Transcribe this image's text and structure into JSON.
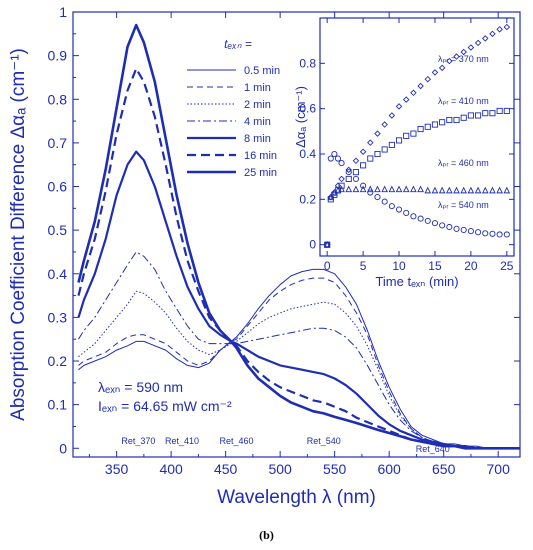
{
  "caption": "(b)",
  "chart_data": [
    {
      "type": "line",
      "xlabel": "Wavelength  λ  (nm)",
      "ylabel": "Absorption Coefficient Difference  Δαₐ  (cm⁻¹)",
      "xlim": [
        310,
        720
      ],
      "ylim": [
        -0.02,
        1.0
      ],
      "xticks": [
        350,
        400,
        450,
        500,
        550,
        600,
        650,
        700
      ],
      "yticks": [
        0,
        0.1,
        0.2,
        0.3,
        0.4,
        0.5,
        0.6,
        0.7,
        0.8,
        0.9,
        1
      ],
      "ytick_labels": [
        "0",
        "0.1",
        "0.2",
        "0.3",
        "0.4",
        "0.5",
        "0.6",
        "0.7",
        "0.8",
        "0.9",
        "1"
      ],
      "line_color": "#1f2db4",
      "legend_title": "tₑₓₙ =",
      "legend_placement": "top-center",
      "annotations": {
        "lambda_exc": "λₑₓₙ = 590 nm",
        "intensity": "Iₑₓₙ = 64.65 mW cm⁻²"
      },
      "markers": [
        {
          "label": "Ret_370",
          "x": 370
        },
        {
          "label": "Ret_410",
          "x": 410
        },
        {
          "label": "Ret_460",
          "x": 460
        },
        {
          "label": "Ret_540",
          "x": 540
        },
        {
          "label": "Ret_640",
          "x": 640
        }
      ],
      "x": [
        315,
        320,
        330,
        340,
        350,
        360,
        368,
        375,
        385,
        395,
        405,
        415,
        425,
        435,
        445,
        455,
        460,
        470,
        480,
        490,
        500,
        510,
        520,
        530,
        540,
        550,
        560,
        570,
        580,
        590,
        600,
        610,
        620,
        630,
        640,
        650,
        660,
        670,
        680,
        690,
        700,
        710,
        720
      ],
      "series": [
        {
          "name": "0.5 min",
          "style": "solid-thin",
          "values": [
            0.18,
            0.19,
            0.2,
            0.21,
            0.225,
            0.235,
            0.245,
            0.245,
            0.235,
            0.225,
            0.205,
            0.19,
            0.185,
            0.195,
            0.225,
            0.245,
            0.255,
            0.285,
            0.32,
            0.35,
            0.375,
            0.395,
            0.405,
            0.41,
            0.41,
            0.4,
            0.37,
            0.33,
            0.27,
            0.2,
            0.14,
            0.09,
            0.05,
            0.03,
            0.02,
            0.01,
            0.01,
            0.005,
            0.005,
            0.0,
            0.0,
            0.0,
            0.0
          ]
        },
        {
          "name": "1 min",
          "style": "dashed-thin",
          "values": [
            0.19,
            0.2,
            0.21,
            0.22,
            0.24,
            0.255,
            0.26,
            0.26,
            0.25,
            0.24,
            0.22,
            0.2,
            0.19,
            0.2,
            0.225,
            0.245,
            0.25,
            0.28,
            0.31,
            0.34,
            0.36,
            0.375,
            0.385,
            0.39,
            0.39,
            0.38,
            0.35,
            0.31,
            0.26,
            0.19,
            0.13,
            0.08,
            0.045,
            0.025,
            0.015,
            0.01,
            0.005,
            0.005,
            0.0,
            0.0,
            0.0,
            0.0,
            0.0
          ]
        },
        {
          "name": "2 min",
          "style": "dotted",
          "values": [
            0.21,
            0.22,
            0.24,
            0.27,
            0.3,
            0.33,
            0.36,
            0.355,
            0.335,
            0.31,
            0.275,
            0.245,
            0.225,
            0.215,
            0.225,
            0.24,
            0.245,
            0.265,
            0.285,
            0.3,
            0.31,
            0.32,
            0.325,
            0.33,
            0.335,
            0.33,
            0.31,
            0.28,
            0.235,
            0.18,
            0.12,
            0.075,
            0.045,
            0.025,
            0.015,
            0.01,
            0.005,
            0.005,
            0.0,
            0.0,
            0.0,
            0.0,
            0.0
          ]
        },
        {
          "name": "4 min",
          "style": "dashdot",
          "values": [
            0.25,
            0.27,
            0.3,
            0.34,
            0.38,
            0.42,
            0.45,
            0.44,
            0.41,
            0.36,
            0.32,
            0.28,
            0.25,
            0.24,
            0.24,
            0.24,
            0.24,
            0.245,
            0.25,
            0.255,
            0.26,
            0.265,
            0.27,
            0.275,
            0.275,
            0.27,
            0.255,
            0.23,
            0.19,
            0.145,
            0.1,
            0.065,
            0.04,
            0.025,
            0.015,
            0.01,
            0.005,
            0.005,
            0.0,
            0.0,
            0.0,
            0.0,
            0.0
          ]
        },
        {
          "name": "8 min",
          "style": "solid-thick",
          "values": [
            0.3,
            0.34,
            0.4,
            0.48,
            0.58,
            0.65,
            0.68,
            0.66,
            0.6,
            0.52,
            0.44,
            0.37,
            0.32,
            0.28,
            0.26,
            0.245,
            0.24,
            0.225,
            0.21,
            0.2,
            0.19,
            0.185,
            0.18,
            0.175,
            0.17,
            0.16,
            0.145,
            0.125,
            0.1,
            0.075,
            0.055,
            0.04,
            0.03,
            0.02,
            0.015,
            0.01,
            0.005,
            0.005,
            0.0,
            0.0,
            0.0,
            0.0,
            0.0
          ]
        },
        {
          "name": "16 min",
          "style": "dashed-thick",
          "values": [
            0.35,
            0.4,
            0.48,
            0.59,
            0.72,
            0.82,
            0.87,
            0.84,
            0.76,
            0.65,
            0.53,
            0.43,
            0.36,
            0.3,
            0.27,
            0.245,
            0.235,
            0.2,
            0.175,
            0.155,
            0.14,
            0.13,
            0.12,
            0.11,
            0.105,
            0.095,
            0.085,
            0.07,
            0.06,
            0.05,
            0.04,
            0.03,
            0.02,
            0.015,
            0.01,
            0.005,
            0.005,
            0.0,
            0.0,
            0.0,
            0.0,
            0.0,
            0.0
          ]
        },
        {
          "name": "25 min",
          "style": "solid-thicker",
          "values": [
            0.38,
            0.43,
            0.52,
            0.64,
            0.78,
            0.92,
            0.97,
            0.93,
            0.84,
            0.71,
            0.58,
            0.47,
            0.38,
            0.31,
            0.27,
            0.245,
            0.23,
            0.19,
            0.16,
            0.14,
            0.12,
            0.105,
            0.095,
            0.085,
            0.08,
            0.072,
            0.065,
            0.058,
            0.05,
            0.042,
            0.035,
            0.028,
            0.02,
            0.015,
            0.01,
            0.005,
            0.005,
            0.0,
            0.0,
            0.0,
            0.0,
            0.0,
            0.0
          ]
        }
      ]
    },
    {
      "type": "scatter",
      "xlabel": "Time  tₑₓₙ  (min)",
      "ylabel": "Δαₐ  (cm⁻¹)",
      "xlim": [
        -1,
        26
      ],
      "ylim": [
        -0.05,
        1.0
      ],
      "xticks": [
        0,
        5,
        10,
        15,
        20,
        25
      ],
      "yticks": [
        0,
        0.2,
        0.4,
        0.6,
        0.8
      ],
      "ytick_labels": [
        "0",
        "0.2",
        "0.4",
        "0.6",
        "0.8"
      ],
      "placement": "top-right inset",
      "series": [
        {
          "name": "λₚᵣ = 370 nm",
          "marker": "diamond",
          "x": [
            0,
            0.5,
            1,
            1.5,
            2,
            3,
            4,
            5,
            6,
            7,
            8,
            9,
            10,
            11,
            12,
            13,
            14,
            15,
            16,
            17,
            18,
            19,
            20,
            21,
            22,
            23,
            24,
            25
          ],
          "values": [
            0.0,
            0.21,
            0.23,
            0.26,
            0.29,
            0.33,
            0.37,
            0.41,
            0.45,
            0.49,
            0.53,
            0.57,
            0.61,
            0.64,
            0.67,
            0.7,
            0.73,
            0.76,
            0.78,
            0.81,
            0.83,
            0.85,
            0.87,
            0.89,
            0.91,
            0.93,
            0.95,
            0.96
          ]
        },
        {
          "name": "λₚᵣ = 410 nm",
          "marker": "square",
          "x": [
            0,
            0.5,
            1,
            1.5,
            2,
            3,
            4,
            5,
            6,
            7,
            8,
            9,
            10,
            11,
            12,
            13,
            14,
            15,
            16,
            17,
            18,
            19,
            20,
            21,
            22,
            23,
            24,
            25
          ],
          "values": [
            0.0,
            0.2,
            0.22,
            0.24,
            0.26,
            0.29,
            0.32,
            0.35,
            0.38,
            0.4,
            0.42,
            0.44,
            0.46,
            0.48,
            0.49,
            0.51,
            0.52,
            0.53,
            0.54,
            0.55,
            0.55,
            0.56,
            0.57,
            0.57,
            0.58,
            0.58,
            0.59,
            0.59
          ]
        },
        {
          "name": "λₚᵣ = 460 nm",
          "marker": "triangle",
          "x": [
            0,
            0.5,
            1,
            1.5,
            2,
            3,
            4,
            5,
            6,
            7,
            8,
            9,
            10,
            11,
            12,
            13,
            14,
            15,
            16,
            17,
            18,
            19,
            20,
            21,
            22,
            23,
            24,
            25
          ],
          "values": [
            0.0,
            0.21,
            0.23,
            0.24,
            0.245,
            0.245,
            0.245,
            0.245,
            0.245,
            0.245,
            0.245,
            0.245,
            0.245,
            0.245,
            0.245,
            0.245,
            0.24,
            0.24,
            0.24,
            0.24,
            0.24,
            0.24,
            0.24,
            0.24,
            0.24,
            0.24,
            0.24,
            0.24
          ]
        },
        {
          "name": "λₚᵣ = 540 nm",
          "marker": "circle",
          "x": [
            0,
            0.5,
            1,
            1.5,
            2,
            3,
            4,
            5,
            6,
            7,
            8,
            9,
            10,
            11,
            12,
            13,
            14,
            15,
            16,
            17,
            18,
            19,
            20,
            21,
            22,
            23,
            24,
            25
          ],
          "values": [
            0.0,
            0.38,
            0.4,
            0.38,
            0.36,
            0.32,
            0.29,
            0.26,
            0.23,
            0.21,
            0.19,
            0.17,
            0.155,
            0.14,
            0.125,
            0.115,
            0.105,
            0.095,
            0.085,
            0.078,
            0.07,
            0.065,
            0.06,
            0.055,
            0.05,
            0.048,
            0.045,
            0.045
          ]
        }
      ]
    }
  ]
}
